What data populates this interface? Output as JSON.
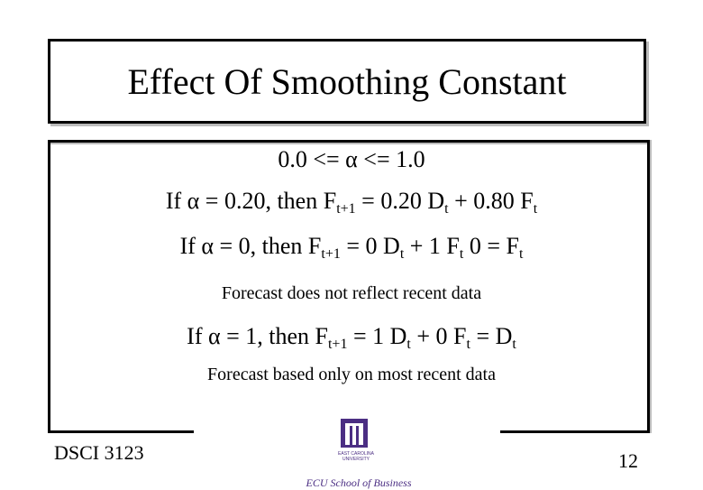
{
  "title": "Effect Of Smoothing Constant",
  "body": [
    {
      "parts": [
        "0.0 <= α <= 1.0"
      ]
    },
    {
      "parts": [
        "If α = 0.20, then F",
        {
          "sub": "t+1"
        },
        " = 0.20 D",
        {
          "sub": "t"
        },
        " + 0.80 F",
        {
          "sub": "t"
        }
      ]
    },
    {
      "parts": [
        "If α = 0, then F",
        {
          "sub": "t+1"
        },
        " = 0 D",
        {
          "sub": "t"
        },
        " + 1 F",
        {
          "sub": "t"
        },
        " 0 = F",
        {
          "sub": "t"
        }
      ]
    },
    {
      "note": "Forecast does not reflect recent data"
    },
    {
      "parts": [
        "If α = 1, then F",
        {
          "sub": "t+1"
        },
        " = 1 D",
        {
          "sub": "t"
        },
        " + 0 F",
        {
          "sub": "t"
        },
        " = D",
        {
          "sub": "t"
        }
      ]
    },
    {
      "note": "Forecast based only on most recent data"
    }
  ],
  "footer": {
    "course": "DSCI 3123",
    "page": "12",
    "logo_name": "EAST CAROLINA UNIVERSITY",
    "logo_caption": "ECU School of Business"
  }
}
